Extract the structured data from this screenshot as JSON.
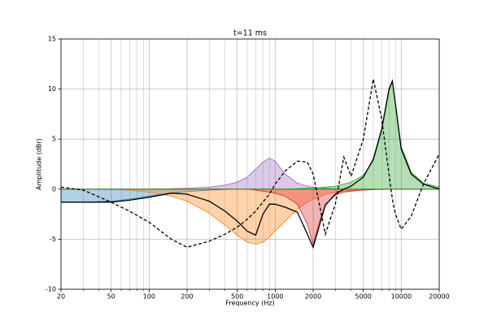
{
  "chart_data": {
    "type": "line",
    "title": "t=11 ms",
    "x_label": "Frequency (Hz)",
    "y_label": "Amplitude (dBr)",
    "log_x": true,
    "grid": true,
    "xlim": [
      20,
      20000
    ],
    "xticks": [
      20,
      50,
      100,
      200,
      500,
      1000,
      2000,
      5000,
      10000,
      20000
    ],
    "xminor_ticks": [
      30,
      40,
      60,
      70,
      80,
      90,
      300,
      400,
      600,
      700,
      800,
      900,
      3000,
      4000,
      6000,
      7000,
      8000,
      9000
    ],
    "ylim": [
      -10,
      15
    ],
    "yticks": [
      -10,
      -5,
      0,
      5,
      10,
      15
    ],
    "x": [
      20,
      30,
      50,
      70,
      100,
      150,
      200,
      300,
      400,
      500,
      600,
      700,
      800,
      900,
      1000,
      1200,
      1500,
      1800,
      2000,
      2200,
      2500,
      3000,
      3500,
      4000,
      5000,
      6000,
      7000,
      8000,
      8500,
      9000,
      10000,
      12000,
      15000,
      20000
    ],
    "series": [
      {
        "color": "#1f77b4",
        "style": "fill",
        "values": [
          -1.3,
          -1.3,
          -1.2,
          -1,
          -0.7,
          -0.4,
          -0.25,
          -0.1,
          -0.05,
          0,
          0,
          0,
          0,
          0,
          0,
          0,
          0,
          0,
          0,
          0,
          0,
          0,
          0,
          0,
          0,
          0,
          0,
          0,
          0,
          0,
          0,
          0,
          0,
          0
        ]
      },
      {
        "color": "#ff7f0e",
        "style": "fill",
        "values": [
          0,
          0,
          -0.05,
          -0.1,
          -0.3,
          -0.7,
          -1.2,
          -2.4,
          -3.6,
          -4.6,
          -5.3,
          -5.5,
          -5.3,
          -4.8,
          -4.2,
          -3.2,
          -2,
          -1.3,
          -1,
          -0.8,
          -0.5,
          -0.3,
          -0.2,
          -0.15,
          -0.1,
          -0.05,
          -0.05,
          0,
          0,
          0,
          0,
          0,
          0,
          0
        ]
      },
      {
        "color": "#9467bd",
        "style": "fill",
        "values": [
          0,
          0,
          0,
          0,
          0,
          0.05,
          0.1,
          0.2,
          0.4,
          0.7,
          1.2,
          2,
          2.7,
          3.1,
          2.8,
          1.5,
          0.6,
          0.3,
          0.2,
          0.15,
          0.1,
          0.05,
          0,
          0,
          0,
          0,
          0,
          0,
          0,
          0,
          0,
          0,
          0,
          0
        ]
      },
      {
        "color": "#d62728",
        "style": "fill",
        "values": [
          0,
          0,
          0,
          0,
          0,
          0,
          0,
          0,
          0,
          0,
          0,
          -0.1,
          -0.2,
          -0.3,
          -0.4,
          -0.7,
          -1.5,
          -3.5,
          -5.5,
          -3.6,
          -1.5,
          -0.6,
          -0.3,
          -0.2,
          -0.1,
          -0.05,
          0,
          0,
          0,
          0,
          0,
          0,
          0,
          0
        ]
      },
      {
        "color": "#2ca02c",
        "style": "fill",
        "values": [
          0,
          0,
          0,
          0,
          0,
          0,
          0,
          0,
          0,
          0,
          0,
          0,
          0,
          0,
          0,
          0,
          0.05,
          0.1,
          0.1,
          0.15,
          0.2,
          0.3,
          0.5,
          0.7,
          1.4,
          2.8,
          5.8,
          9.8,
          10.8,
          8.6,
          4.3,
          1.7,
          0.6,
          0.2
        ]
      },
      {
        "color": "#000000",
        "style": "solid",
        "values": [
          -1.3,
          -1.3,
          -1.3,
          -1.1,
          -0.8,
          -0.4,
          -0.5,
          -1.2,
          -2.2,
          -3.2,
          -4.2,
          -4.6,
          -2.5,
          -1.5,
          -1.5,
          -1.8,
          -2.3,
          -4.5,
          -5.8,
          -4,
          -1.6,
          -0.5,
          0,
          0.3,
          1.2,
          3,
          6,
          10,
          10.8,
          8.5,
          4,
          1.5,
          0.5,
          0
        ]
      },
      {
        "color": "#000000",
        "style": "dashed",
        "values": [
          0.2,
          -0.1,
          -1.3,
          -2.2,
          -3.3,
          -5,
          -5.8,
          -5.2,
          -4.5,
          -3.8,
          -3,
          -2.2,
          -1.3,
          -0.5,
          0.5,
          1.8,
          2.8,
          2.7,
          1.5,
          -1,
          -4.5,
          -1.5,
          3.2,
          1.3,
          5,
          11,
          7,
          1.5,
          -1,
          -2.5,
          -4,
          -2.7,
          0.5,
          3.5
        ]
      }
    ]
  }
}
